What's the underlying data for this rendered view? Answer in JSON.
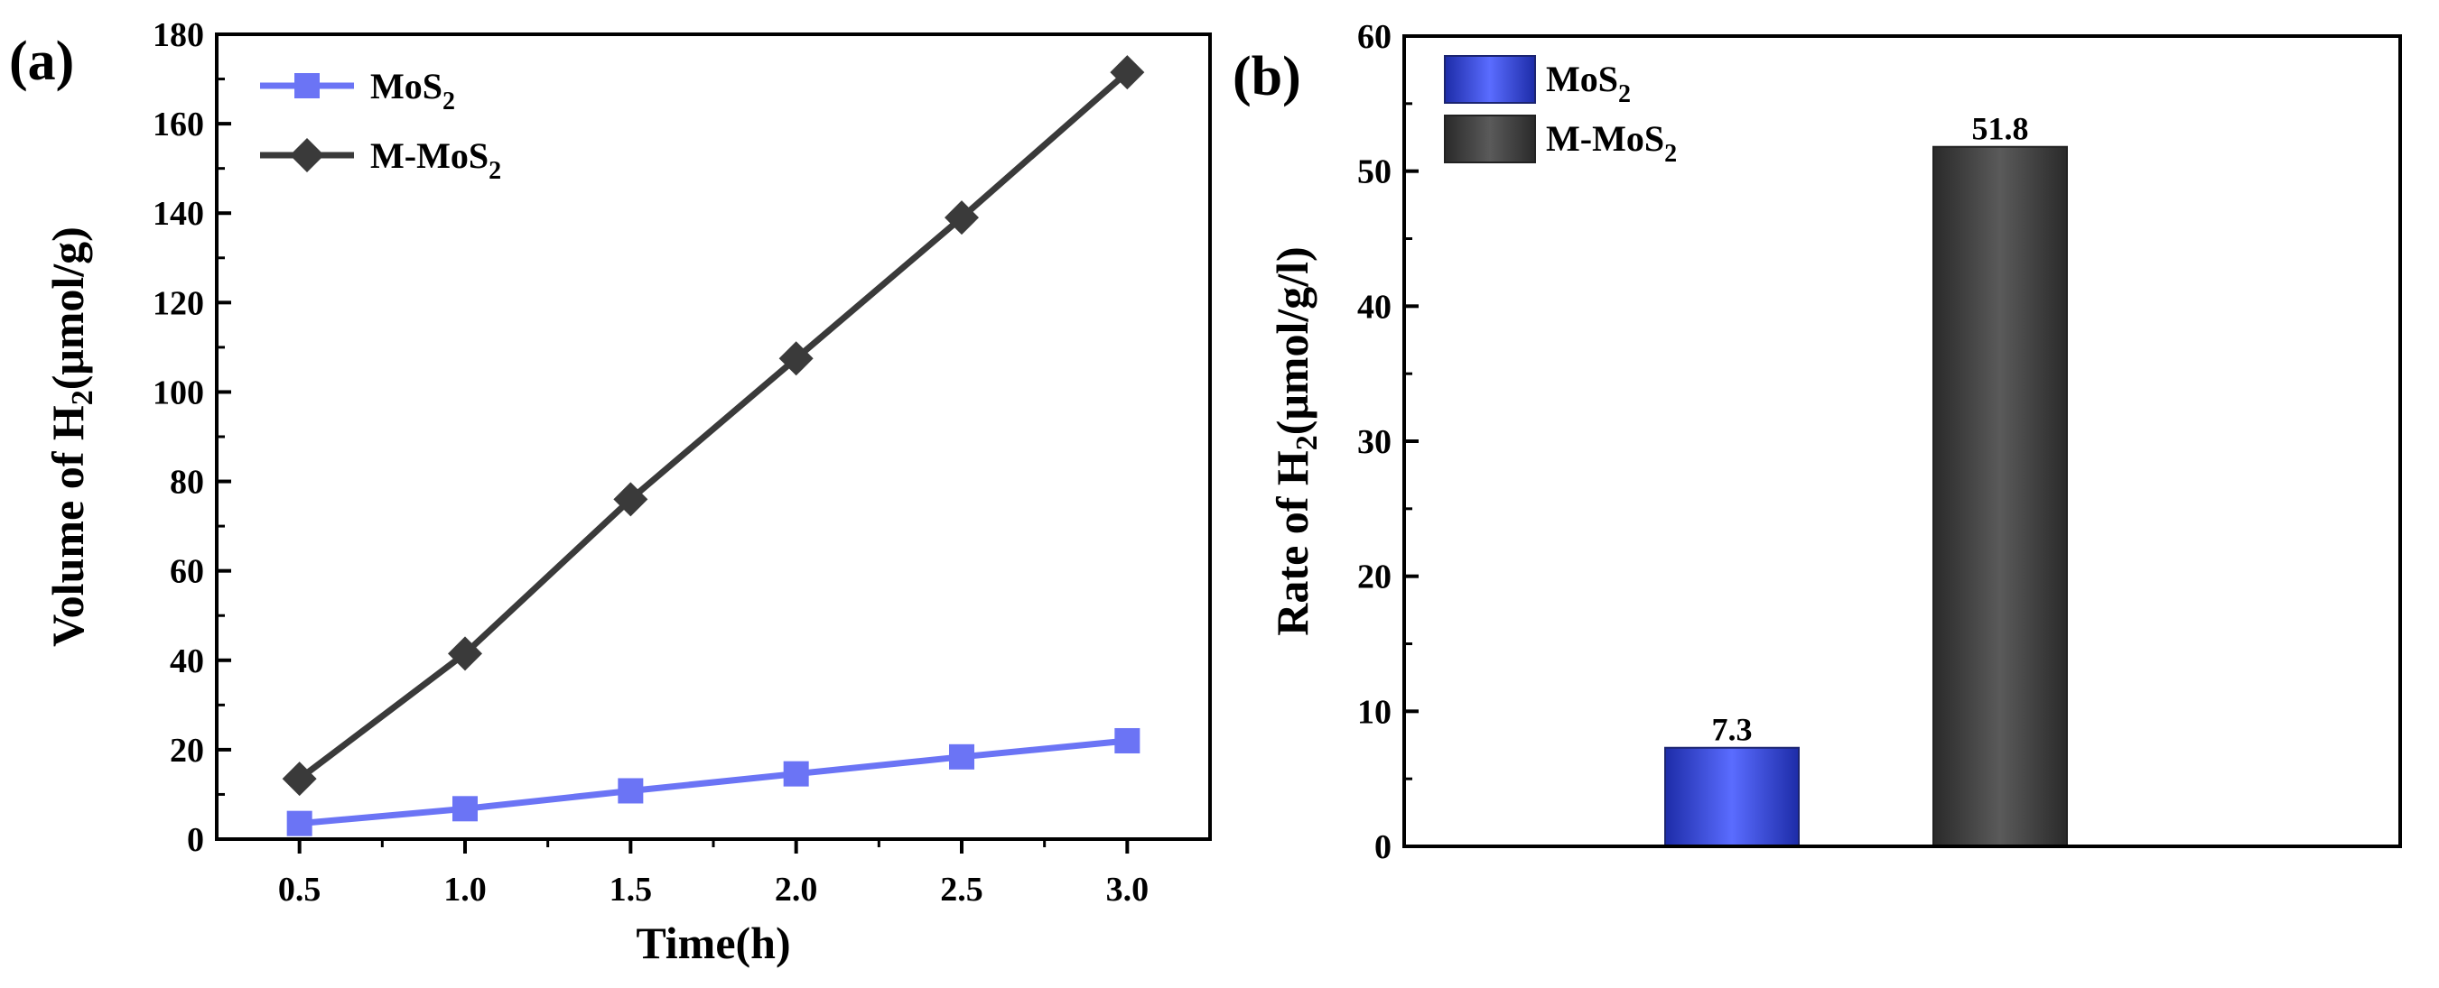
{
  "chart_data": [
    {
      "type": "line",
      "panel_label": "(a)",
      "xlabel": "Time(h)",
      "ylabel_parts": [
        "Volume of H",
        "2",
        "(μmol/g)"
      ],
      "xlim": [
        0.25,
        3.25
      ],
      "ylim": [
        0,
        180
      ],
      "xticks": [
        0.5,
        1.0,
        1.5,
        2.0,
        2.5,
        3.0
      ],
      "xtick_labels": [
        "0.5",
        "1.0",
        "1.5",
        "2.0",
        "2.5",
        "3.0"
      ],
      "yticks": [
        0,
        20,
        40,
        60,
        80,
        100,
        120,
        140,
        160,
        180
      ],
      "ytick_labels": [
        "0",
        "20",
        "40",
        "60",
        "80",
        "100",
        "120",
        "140",
        "160",
        "180"
      ],
      "x": [
        0.5,
        1.0,
        1.5,
        2.0,
        2.5,
        3.0
      ],
      "series": [
        {
          "name_parts": [
            "MoS",
            "2"
          ],
          "marker": "square",
          "color": "#6b74f5",
          "values": [
            3.5,
            6.8,
            10.8,
            14.6,
            18.4,
            22.0
          ]
        },
        {
          "name_parts": [
            "M-MoS",
            "2"
          ],
          "marker": "diamond",
          "color": "#3a3a3a",
          "values": [
            13.5,
            41.5,
            76.0,
            107.5,
            139.0,
            171.5
          ]
        }
      ],
      "legend_position": "top-left"
    },
    {
      "type": "bar",
      "panel_label": "(b)",
      "ylabel_parts": [
        "Rate of H",
        "2",
        "(μmol/g/l)"
      ],
      "ylim": [
        0,
        60
      ],
      "yticks": [
        0,
        10,
        20,
        30,
        40,
        50,
        60
      ],
      "ytick_labels": [
        "0",
        "10",
        "20",
        "30",
        "40",
        "50",
        "60"
      ],
      "categories": [
        "MoS2",
        "M-MoS2"
      ],
      "series": [
        {
          "name_parts": [
            "MoS",
            "2"
          ],
          "value": 7.3,
          "data_label": "7.3",
          "color": "#4a5ef0"
        },
        {
          "name_parts": [
            "M-MoS",
            "2"
          ],
          "value": 51.8,
          "data_label": "51.8",
          "color": "#4a4a4a"
        }
      ],
      "legend_position": "top-left"
    }
  ]
}
